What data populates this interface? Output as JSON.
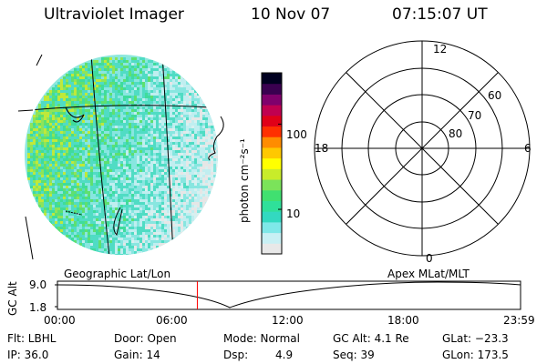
{
  "header": {
    "instrument": "Ultraviolet Imager",
    "date": "10 Nov 07",
    "time": "07:15:07 UT"
  },
  "colorbar": {
    "unit_label": "photon cm⁻²s⁻¹",
    "ticks": [
      {
        "value": 10,
        "label": "10"
      },
      {
        "value": 100,
        "label": "100"
      }
    ],
    "log_range": [
      3,
      400
    ],
    "colors": [
      "#e8e8e8",
      "#c8f0f4",
      "#7fe8e8",
      "#33d9c0",
      "#2fe09a",
      "#40e070",
      "#7be35a",
      "#c8ec2a",
      "#ffff00",
      "#ffc800",
      "#ff8c00",
      "#ff3000",
      "#e00018",
      "#c00050",
      "#80006c",
      "#3a0050",
      "#000020"
    ]
  },
  "polar": {
    "labels": {
      "top": "12",
      "bottom": "0",
      "left": "18",
      "right": "6",
      "lat60": "60",
      "lat70": "70",
      "lat80": "80"
    }
  },
  "timeline": {
    "left_title": "Geographic Lat/Lon",
    "right_title": "Apex MLat/MLT",
    "axis_label": "GC Alt",
    "y_top": "9.0",
    "y_bottom": "1.8",
    "ticks": [
      "00:00",
      "06:00",
      "12:00",
      "18:00",
      "23:59"
    ],
    "current_time_hours": 7.25
  },
  "status": {
    "flt_label": "Flt: LBHL",
    "ip_label": "IP: 36.0",
    "door_label": "Door: Open",
    "gain_label": "Gain: 14",
    "mode_label": "Mode: Normal",
    "dsp_label": "Dsp:",
    "dsp_value": "4.9",
    "gcalt_label": "GC Alt: 4.1 Re",
    "seq_label": "Seq: 39",
    "glat_label": "GLat: −23.3",
    "glon_label": "GLon: 173.5"
  }
}
